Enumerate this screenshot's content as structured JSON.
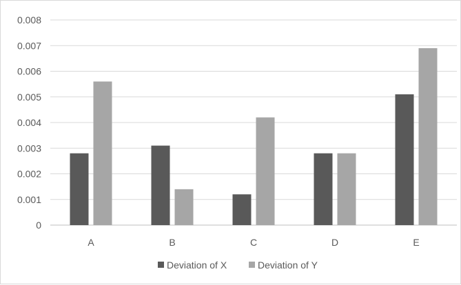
{
  "chart_data": {
    "type": "bar",
    "title": "",
    "xlabel": "",
    "ylabel": "",
    "categories": [
      "A",
      "B",
      "C",
      "D",
      "E"
    ],
    "series": [
      {
        "name": "Deviation of X",
        "color": "#595959",
        "values": [
          0.0028,
          0.0031,
          0.0012,
          0.0028,
          0.0051
        ]
      },
      {
        "name": "Deviation of Y",
        "color": "#a6a6a6",
        "values": [
          0.0056,
          0.0014,
          0.0042,
          0.0028,
          0.0069
        ]
      }
    ],
    "ylim": [
      0,
      0.008
    ],
    "yticks": [
      "0",
      "0.001",
      "0.002",
      "0.003",
      "0.004",
      "0.005",
      "0.006",
      "0.007",
      "0.008"
    ],
    "grid": true,
    "legend_position": "bottom",
    "colors": {
      "gridline": "#d9d9d9",
      "axis_line": "#bfbfbf",
      "label_text": "#595959"
    }
  }
}
